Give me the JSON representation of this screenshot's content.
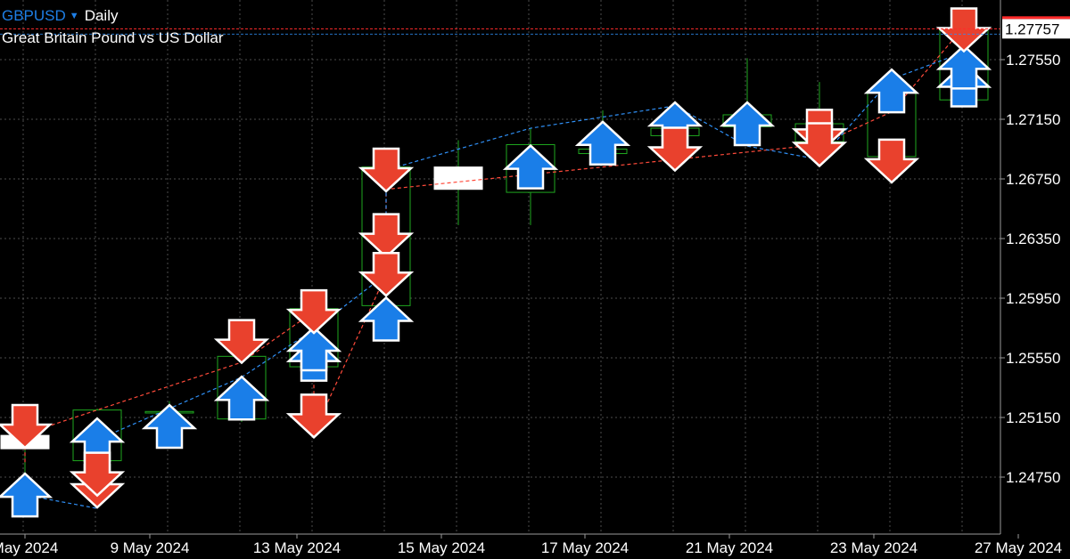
{
  "header": {
    "symbol": "GBPUSD",
    "dropdown_icon": "caret-down-icon",
    "timeframe": "Daily",
    "description": "Great Britain Pound vs US Dollar"
  },
  "price_axis": {
    "current_price_label": "1.27757",
    "current_price_value": 1.27757
  },
  "colors": {
    "background": "#000000",
    "grid": "#6e6e6e",
    "candle_bull": "#1fa81f",
    "buy_arrow": "#1a7ee8",
    "sell_arrow": "#e9412d",
    "arrow_outline": "#ffffff",
    "buy_line": "#2f8ff5",
    "sell_line": "#ff4a3a",
    "price_line": "#ff2b2b",
    "axis_text": "#ffffff"
  },
  "chart_data": {
    "type": "candlestick",
    "title": "GBPUSD Daily",
    "subtitle": "Great Britain Pound vs US Dollar",
    "ylim": [
      1.2455,
      1.2795
    ],
    "y_ticks": [
      "1.24750",
      "1.25150",
      "1.25550",
      "1.25950",
      "1.26350",
      "1.26750",
      "1.27150",
      "1.27550"
    ],
    "x_tick_labels": [
      "May 2024",
      "9 May 2024",
      "13 May 2024",
      "15 May 2024",
      "17 May 2024",
      "21 May 2024",
      "23 May 2024",
      "27 May 2024"
    ],
    "grid": true,
    "candles": [
      {
        "open": 1.2503,
        "high": 1.2513,
        "low": 1.2472,
        "close": 1.2494
      },
      {
        "open": 1.2486,
        "high": 1.2521,
        "low": 1.2469,
        "close": 1.252
      },
      {
        "open": 1.2518,
        "high": 1.2526,
        "low": 1.2511,
        "close": 1.2519
      },
      {
        "open": 1.2514,
        "high": 1.2559,
        "low": 1.2512,
        "close": 1.2556
      },
      {
        "open": 1.2549,
        "high": 1.2591,
        "low": 1.2542,
        "close": 1.2588
      },
      {
        "open": 1.259,
        "high": 1.2687,
        "low": 1.2584,
        "close": 1.2683
      },
      {
        "open": 1.2683,
        "high": 1.2701,
        "low": 1.2644,
        "close": 1.2668
      },
      {
        "open": 1.2666,
        "high": 1.2709,
        "low": 1.2644,
        "close": 1.2698
      },
      {
        "open": 1.2692,
        "high": 1.2721,
        "low": 1.2687,
        "close": 1.2695
      },
      {
        "open": 1.2704,
        "high": 1.2721,
        "low": 1.27,
        "close": 1.2709
      },
      {
        "open": 1.271,
        "high": 1.2756,
        "low": 1.2699,
        "close": 1.2718
      },
      {
        "open": 1.27,
        "high": 1.274,
        "low": 1.269,
        "close": 1.2712
      },
      {
        "open": 1.269,
        "high": 1.274,
        "low": 1.2675,
        "close": 1.2734
      },
      {
        "open": 1.2728,
        "high": 1.2777,
        "low": 1.2724,
        "close": 1.2776
      }
    ],
    "buy_signals": [
      {
        "bar": 0,
        "price": 1.2463
      },
      {
        "bar": 1,
        "price": 1.25
      },
      {
        "bar": 2,
        "price": 1.2509
      },
      {
        "bar": 3,
        "price": 1.2528
      },
      {
        "bar": 4,
        "price": 1.2554
      },
      {
        "bar": 4,
        "price": 1.2561
      },
      {
        "bar": 5,
        "price": 1.2581
      },
      {
        "bar": 7,
        "price": 1.2683
      },
      {
        "bar": 8,
        "price": 1.2699
      },
      {
        "bar": 9,
        "price": 1.2712
      },
      {
        "bar": 10,
        "price": 1.2712
      },
      {
        "bar": 12,
        "price": 1.2734
      },
      {
        "bar": 13,
        "price": 1.2738
      },
      {
        "bar": 13,
        "price": 1.275
      }
    ],
    "sell_signals": [
      {
        "bar": 0,
        "price": 1.2509
      },
      {
        "bar": 1,
        "price": 1.2469
      },
      {
        "bar": 1,
        "price": 1.2477
      },
      {
        "bar": 3,
        "price": 1.2566
      },
      {
        "bar": 4,
        "price": 1.2586
      },
      {
        "bar": 4,
        "price": 1.2516
      },
      {
        "bar": 5,
        "price": 1.2681
      },
      {
        "bar": 5,
        "price": 1.2637
      },
      {
        "bar": 5,
        "price": 1.2611
      },
      {
        "bar": 9,
        "price": 1.2695
      },
      {
        "bar": 11,
        "price": 1.2707
      },
      {
        "bar": 11,
        "price": 1.2698
      },
      {
        "bar": 12,
        "price": 1.2687
      },
      {
        "bar": 13,
        "price": 1.2775
      }
    ],
    "buy_line": [
      [
        0,
        1.2463
      ],
      [
        1,
        1.2454
      ],
      [
        1,
        1.25
      ],
      [
        3,
        1.2542
      ],
      [
        4,
        1.2574
      ],
      [
        5,
        1.2611
      ],
      [
        5,
        1.2681
      ],
      [
        7,
        1.2709
      ],
      [
        9,
        1.2724
      ],
      [
        10,
        1.2697
      ],
      [
        11,
        1.2688
      ],
      [
        12,
        1.2742
      ],
      [
        13,
        1.276
      ]
    ],
    "sell_line": [
      [
        0,
        1.2485
      ],
      [
        0,
        1.2504
      ],
      [
        3,
        1.2552
      ],
      [
        4,
        1.2586
      ],
      [
        4,
        1.2557
      ],
      [
        4,
        1.2505
      ],
      [
        5,
        1.2611
      ],
      [
        5,
        1.2668
      ],
      [
        11,
        1.2698
      ],
      [
        12,
        1.272
      ],
      [
        13,
        1.2777
      ]
    ]
  }
}
